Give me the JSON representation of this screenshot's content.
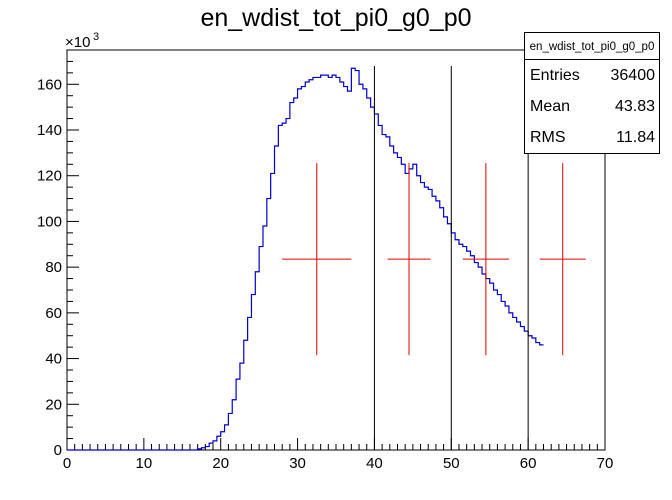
{
  "chart_data": {
    "type": "histogram",
    "title": "en_wdist_tot_pi0_g0_p0",
    "xlabel": "",
    "ylabel": "",
    "xlim": [
      0,
      70
    ],
    "ylim": [
      0,
      175000
    ],
    "y_multiplier_label": "×10",
    "y_multiplier_exp": "3",
    "x_ticks": [
      "0",
      "10",
      "20",
      "30",
      "40",
      "50",
      "60",
      "70"
    ],
    "y_ticks": [
      "0",
      "20",
      "40",
      "60",
      "80",
      "100",
      "120",
      "140",
      "160"
    ],
    "grid": false,
    "colors": {
      "histogram": "#0000cc",
      "markers": "#e00000",
      "lines": "#000000",
      "axis": "#000000"
    },
    "bin_width": 0.5,
    "bin_start": 0,
    "histogram_values": [
      0,
      0,
      0,
      0,
      0,
      0,
      0,
      0,
      0,
      0,
      0,
      0,
      0,
      0,
      0,
      0,
      0,
      0,
      0,
      0,
      0,
      0,
      0,
      0,
      0,
      0,
      0,
      0,
      0,
      0,
      0,
      0,
      0,
      0,
      500,
      1000,
      1500,
      3000,
      4000,
      6000,
      8000,
      11000,
      16000,
      22000,
      31000,
      38000,
      48000,
      58000,
      68000,
      78000,
      89000,
      98000,
      110000,
      121000,
      133000,
      142000,
      143000,
      145000,
      152000,
      154000,
      158000,
      159000,
      161000,
      162000,
      163000,
      163000,
      164000,
      164000,
      163000,
      164000,
      163000,
      161000,
      159000,
      157000,
      167000,
      166000,
      160000,
      158000,
      154000,
      150000,
      147000,
      142000,
      138000,
      137000,
      133000,
      130000,
      128000,
      125000,
      121000,
      123000,
      125000,
      120000,
      117000,
      115000,
      114000,
      111000,
      109000,
      106000,
      102000,
      99000,
      95000,
      92000,
      90000,
      89000,
      87000,
      85000,
      82000,
      80000,
      77000,
      75000,
      73000,
      70000,
      68000,
      65000,
      63000,
      60000,
      58000,
      56000,
      54000,
      52000,
      50000,
      49000,
      47000,
      46000
    ],
    "markers": [
      {
        "x": 32.5,
        "xerr": 4.5,
        "y": 83500,
        "yerr": 42000
      },
      {
        "x": 44.5,
        "xerr": 2.8,
        "y": 83500,
        "yerr": 42000
      },
      {
        "x": 54.5,
        "xerr": 3.0,
        "y": 83500,
        "yerr": 42000
      },
      {
        "x": 64.5,
        "xerr": 3.0,
        "y": 83500,
        "yerr": 42000
      }
    ],
    "vertical_lines": [
      {
        "x": 40,
        "y_top": 168000
      },
      {
        "x": 50,
        "y_top": 168000
      },
      {
        "x": 60,
        "y_top": 168000
      },
      {
        "x": 70,
        "y_top": 172000
      }
    ]
  },
  "stats": {
    "name": "en_wdist_tot_pi0_g0_p0",
    "rows": [
      {
        "key": "Entries",
        "value": "36400"
      },
      {
        "key": "Mean",
        "value": "43.83"
      },
      {
        "key": "RMS",
        "value": "11.84"
      }
    ]
  }
}
